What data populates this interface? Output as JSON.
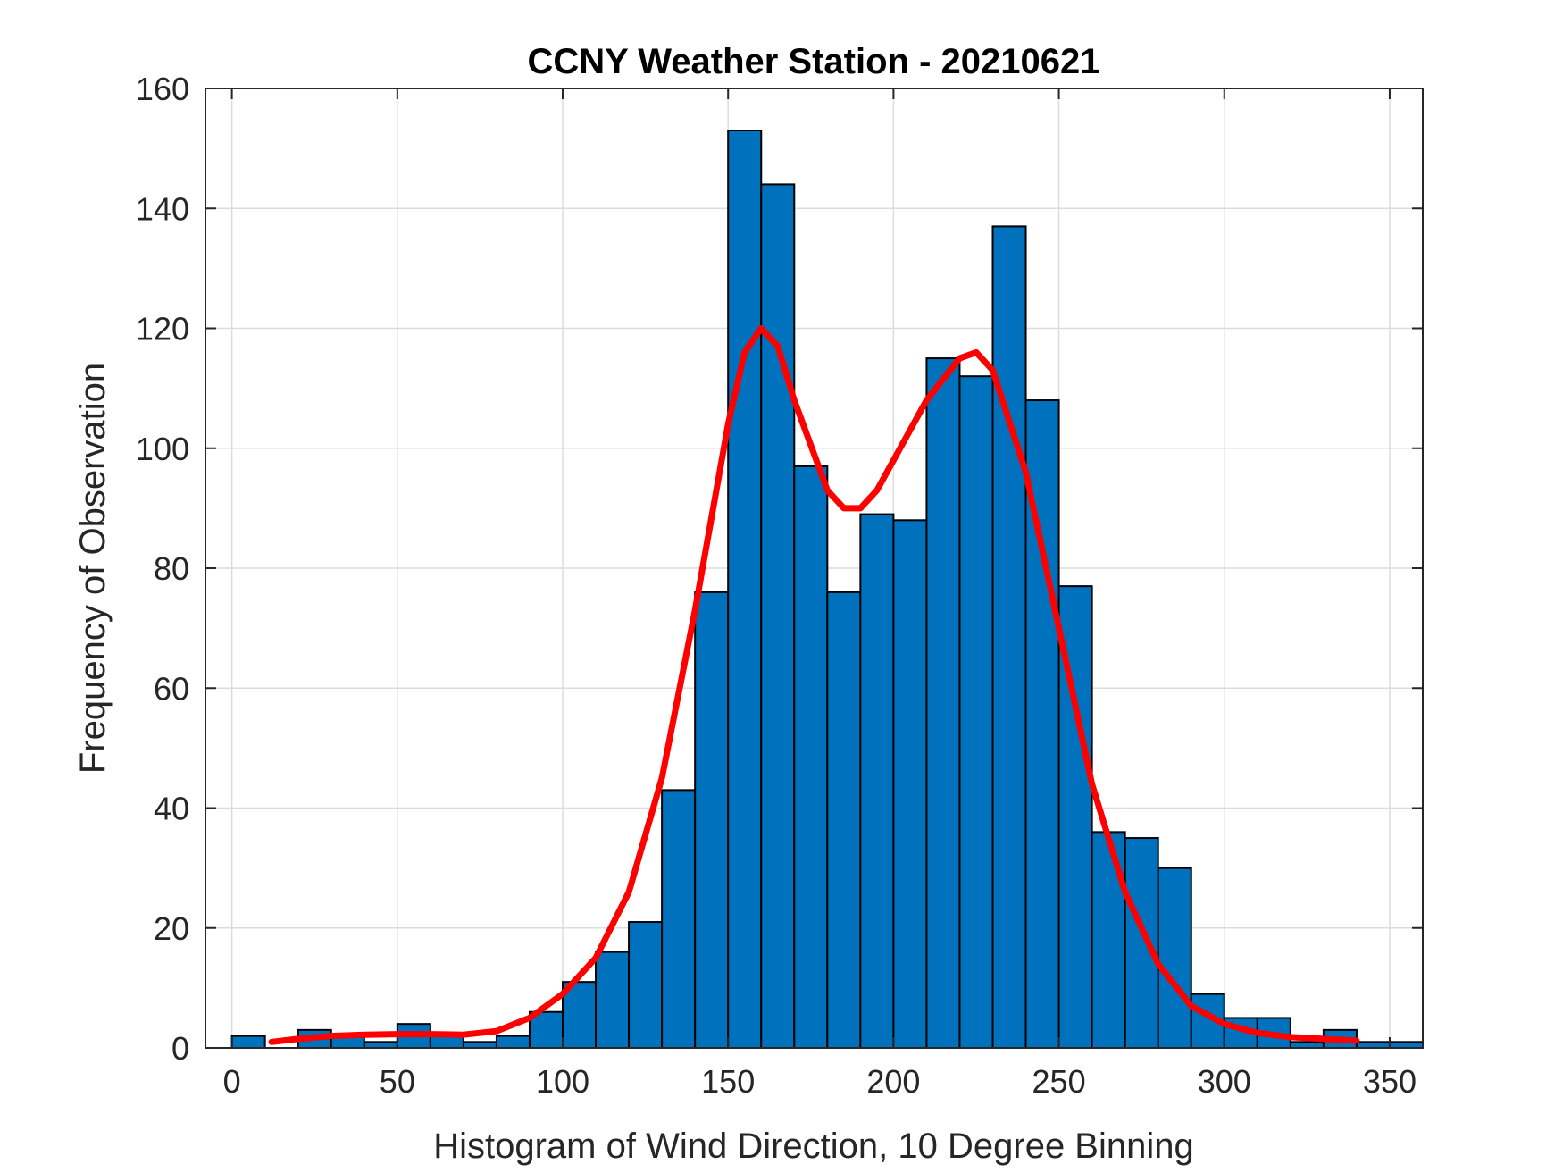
{
  "chart_data": {
    "type": "bar",
    "title": "CCNY Weather Station - 20210621",
    "xlabel": "Histogram of Wind Direction, 10 Degree Binning",
    "ylabel": "Frequency of Observation",
    "xlim": [
      -8,
      360
    ],
    "ylim": [
      0,
      160
    ],
    "xticks": [
      "0",
      "50",
      "100",
      "150",
      "200",
      "250",
      "300",
      "350"
    ],
    "yticks": [
      "0",
      "20",
      "40",
      "60",
      "80",
      "100",
      "120",
      "140",
      "160"
    ],
    "grid": true,
    "bin_width": 10,
    "bin_edges_start": 0,
    "values": [
      2,
      0,
      3,
      2,
      1,
      4,
      2,
      1,
      2,
      6,
      11,
      16,
      21,
      43,
      76,
      153,
      144,
      97,
      76,
      89,
      88,
      115,
      112,
      137,
      108,
      77,
      36,
      35,
      30,
      9,
      5,
      5,
      1,
      3,
      1,
      1
    ],
    "series": [
      {
        "name": "histogram",
        "color": "#0072BD"
      },
      {
        "name": "fitted density curve",
        "type": "line",
        "color": "#FF0000",
        "x": [
          12,
          20,
          30,
          40,
          50,
          60,
          70,
          80,
          90,
          100,
          110,
          120,
          130,
          140,
          150,
          155,
          160,
          165,
          170,
          180,
          185,
          190,
          195,
          200,
          210,
          220,
          225,
          230,
          240,
          250,
          260,
          270,
          280,
          290,
          300,
          310,
          320,
          330,
          340
        ],
        "y": [
          1,
          1.5,
          2,
          2.2,
          2.3,
          2.3,
          2.2,
          2.8,
          5,
          9,
          15,
          26,
          45,
          73,
          104,
          116,
          120,
          117,
          108,
          93,
          90,
          90,
          93,
          98,
          108,
          115,
          116,
          113,
          96,
          70,
          44,
          26,
          14,
          7,
          4,
          2.5,
          1.8,
          1.5,
          1.2
        ]
      }
    ]
  }
}
